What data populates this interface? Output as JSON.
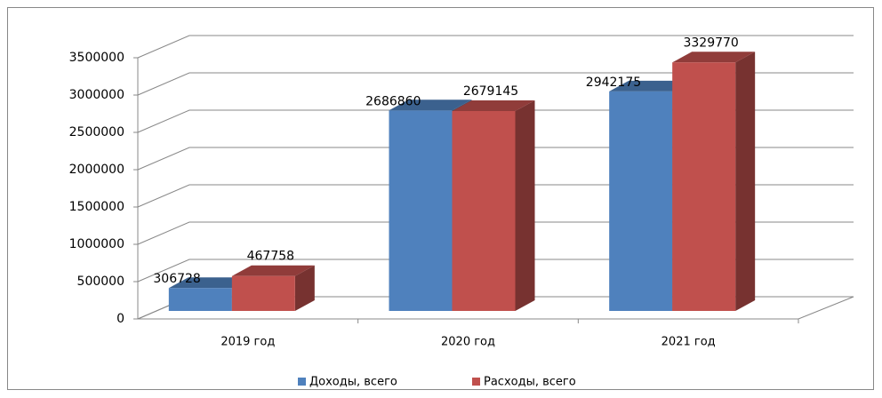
{
  "chart_data": {
    "type": "bar3d",
    "categories": [
      "2019 год",
      "2020 год",
      "2021 год"
    ],
    "series": [
      {
        "name": "Доходы, всего",
        "color": "#4f81bd",
        "values": [
          306728,
          2686860,
          2942175
        ]
      },
      {
        "name": "Расходы, всего",
        "color": "#c0504d",
        "values": [
          467758,
          2679145,
          3329770
        ]
      }
    ],
    "ylim": [
      0,
      3500000
    ],
    "yticks": [
      0,
      500000,
      1000000,
      1500000,
      2000000,
      2500000,
      3000000,
      3500000
    ],
    "grid": true,
    "legend": "bottom"
  }
}
